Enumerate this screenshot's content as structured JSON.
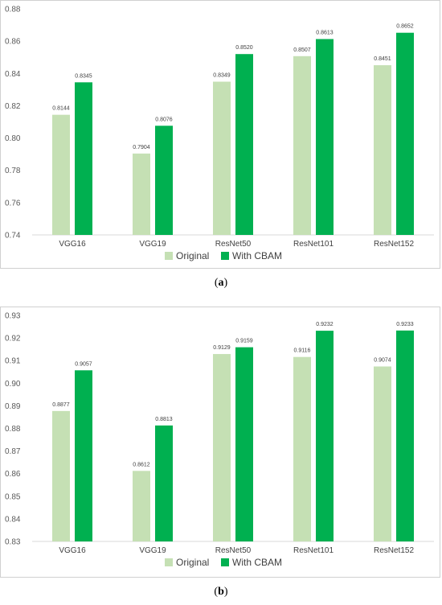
{
  "colors": {
    "original": "#c5e0b4",
    "cbam": "#00b050",
    "grid": "#d9d9d9"
  },
  "legend": {
    "original": "Original",
    "cbam": "With CBAM"
  },
  "captions": {
    "a": "a",
    "b": "b"
  },
  "chart_data": [
    {
      "type": "bar",
      "categories": [
        "VGG16",
        "VGG19",
        "ResNet50",
        "ResNet101",
        "ResNet152"
      ],
      "series": [
        {
          "name": "Original",
          "values": [
            0.8144,
            0.7904,
            0.8349,
            0.8507,
            0.8451
          ]
        },
        {
          "name": "With CBAM",
          "values": [
            0.8345,
            0.8076,
            0.852,
            0.8613,
            0.8652
          ]
        }
      ],
      "value_labels": [
        [
          "0.8144",
          "0.7904",
          "0.8349",
          "0.8507",
          "0.8451"
        ],
        [
          "0.8345",
          "0.8076",
          "0.8520",
          "0.8613",
          "0.8652"
        ]
      ],
      "ylim": [
        0.74,
        0.88
      ],
      "yticks": [
        "0.74",
        "0.76",
        "0.78",
        "0.80",
        "0.82",
        "0.84",
        "0.86",
        "0.88"
      ],
      "legend_position": "bottom",
      "grid": false
    },
    {
      "type": "bar",
      "categories": [
        "VGG16",
        "VGG19",
        "ResNet50",
        "ResNet101",
        "ResNet152"
      ],
      "series": [
        {
          "name": "Original",
          "values": [
            0.8877,
            0.8612,
            0.9129,
            0.9116,
            0.9074
          ]
        },
        {
          "name": "With CBAM",
          "values": [
            0.9057,
            0.8813,
            0.9159,
            0.9232,
            0.9233
          ]
        }
      ],
      "value_labels": [
        [
          "0.8877",
          "0.8612",
          "0.9129",
          "0.9116",
          "0.9074"
        ],
        [
          "0.9057",
          "0.8813",
          "0.9159",
          "0.9232",
          "0.9233"
        ]
      ],
      "ylim": [
        0.83,
        0.93
      ],
      "yticks": [
        "0.83",
        "0.84",
        "0.85",
        "0.86",
        "0.87",
        "0.88",
        "0.89",
        "0.90",
        "0.91",
        "0.92",
        "0.93"
      ],
      "legend_position": "bottom",
      "grid": false
    }
  ]
}
